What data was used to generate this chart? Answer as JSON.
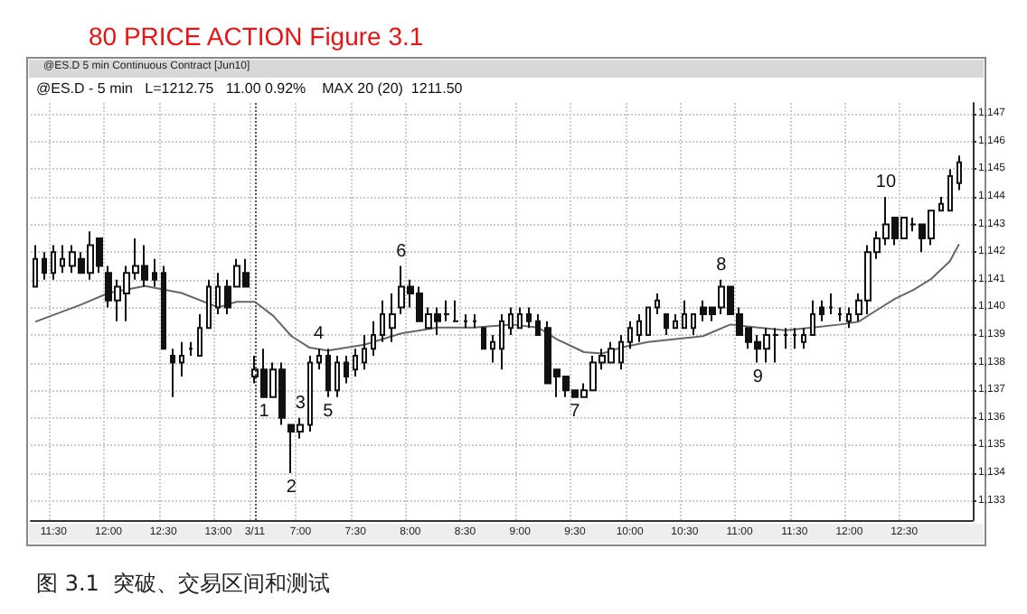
{
  "chart_data": {
    "type": "candlestick",
    "title": "80 PRICE ACTION Figure 3.1",
    "subtitle": "@ES.D - 5 min   L=1212.75   11.00 0.92%    MAX 20 (20)  1211.50",
    "annotations": [
      "@ES.D 5 min Continuous Contract [Jun10]",
      "图 3.1  突破、交易区间和测试"
    ],
    "categories": [
      null,
      null,
      "11:30",
      null,
      null,
      null,
      null,
      null,
      "12:00",
      null,
      null,
      null,
      null,
      null,
      "12:30",
      null,
      null,
      null,
      null,
      null,
      "13:00",
      null,
      null,
      null,
      "3/11",
      null,
      null,
      null,
      null,
      "7:00",
      null,
      null,
      null,
      null,
      null,
      "7:30",
      null,
      null,
      null,
      null,
      null,
      "8:00",
      null,
      null,
      null,
      null,
      null,
      "8:30",
      null,
      null,
      null,
      null,
      null,
      "9:00",
      null,
      null,
      null,
      null,
      null,
      "9:30",
      null,
      null,
      null,
      null,
      null,
      "10:00",
      null,
      null,
      null,
      null,
      null,
      "10:30",
      null,
      null,
      null,
      null,
      null,
      "11:00",
      null,
      null,
      null,
      null,
      null,
      "11:30",
      null,
      null,
      null,
      null,
      null,
      "12:00",
      null,
      null,
      null,
      null,
      null,
      "12:30",
      null,
      null,
      null,
      null,
      null,
      null
    ],
    "ylim": [
      1132.3,
      1147.4
    ],
    "yticks": [
      {
        "value": 1133,
        "label": "1,133"
      },
      {
        "value": 1134,
        "label": "1,134"
      },
      {
        "value": 1135,
        "label": "1,135"
      },
      {
        "value": 1136,
        "label": "1,136"
      },
      {
        "value": 1137,
        "label": "1,137"
      },
      {
        "value": 1138,
        "label": "1,138"
      },
      {
        "value": 1139,
        "label": "1,139"
      },
      {
        "value": 1140,
        "label": "1,140"
      },
      {
        "value": 1141,
        "label": "1,141"
      },
      {
        "value": 1142,
        "label": "1,142"
      },
      {
        "value": 1143,
        "label": "1,143"
      },
      {
        "value": 1144,
        "label": "1,144"
      },
      {
        "value": 1145,
        "label": "1,145"
      },
      {
        "value": 1146,
        "label": "1,146"
      },
      {
        "value": 1147,
        "label": "1,147"
      }
    ],
    "grid": true,
    "ref_lines": [
      {
        "axis": "x",
        "value": "3/11",
        "line_style": "dotted",
        "color": "#555555"
      }
    ],
    "series": [
      {
        "type": "line",
        "color": "#666666",
        "marker": "none",
        "values": [
          1139.48,
          null,
          null,
          null,
          null,
          1140.1,
          null,
          null,
          1140.52,
          null,
          null,
          null,
          1140.77,
          null,
          null,
          null,
          1140.52,
          null,
          null,
          null,
          1140,
          null,
          1140.2,
          null,
          1140.2,
          null,
          1139.7,
          null,
          1138.96,
          null,
          1138.54,
          null,
          1138.44,
          null,
          null,
          null,
          1138.65,
          null,
          null,
          null,
          1139.06,
          null,
          null,
          null,
          1139.27,
          null,
          null,
          null,
          1139.27,
          null,
          null,
          null,
          1139.38,
          null,
          null,
          1139.27,
          null,
          1138.85,
          null,
          null,
          1138.38,
          null,
          1138.33,
          null,
          1138.54,
          null,
          null,
          1138.75,
          null,
          null,
          1138.85,
          null,
          null,
          1138.96,
          null,
          null,
          1139.38,
          null,
          null,
          1139.27,
          null,
          null,
          1139.17,
          null,
          null,
          1139.27,
          null,
          null,
          1139.38,
          null,
          1139.48,
          null,
          1139.9,
          null,
          1140.31,
          null,
          1140.63,
          null,
          1141.04,
          null,
          1141.67,
          1142.29
        ]
      },
      {
        "type": "candlestick",
        "value_labels": [
          null,
          null,
          null,
          null,
          null,
          null,
          null,
          null,
          null,
          null,
          null,
          null,
          null,
          null,
          null,
          null,
          null,
          null,
          null,
          null,
          null,
          null,
          null,
          null,
          null,
          "1",
          null,
          null,
          "2",
          "3",
          null,
          "4",
          "5",
          null,
          null,
          null,
          null,
          null,
          null,
          null,
          "6",
          null,
          null,
          null,
          null,
          null,
          null,
          null,
          null,
          null,
          null,
          null,
          null,
          null,
          null,
          null,
          null,
          null,
          null,
          "7",
          null,
          null,
          null,
          null,
          null,
          null,
          null,
          null,
          null,
          null,
          null,
          null,
          null,
          null,
          null,
          "8",
          null,
          null,
          null,
          "9",
          null,
          null,
          null,
          null,
          null,
          null,
          null,
          null,
          null,
          null,
          null,
          null,
          null,
          "10",
          null,
          null,
          null,
          null,
          null,
          null,
          null,
          null
        ],
        "ohlc": [
          [
            1140.75,
            1142.25,
            1140.75,
            1141.75
          ],
          [
            1141.75,
            1142,
            1141,
            1141.25
          ],
          [
            1141.25,
            1142.25,
            1141,
            1142
          ],
          [
            1141.5,
            1142.25,
            1141.25,
            1141.75
          ],
          [
            1141.5,
            1142.25,
            1141.25,
            1142
          ],
          [
            1141.75,
            1142,
            1141.25,
            1141.25
          ],
          [
            1141.25,
            1142.75,
            1141,
            1142.25
          ],
          [
            1142.5,
            1142.5,
            1141.25,
            1141.5
          ],
          [
            1141.25,
            1141.5,
            1140,
            1140.25
          ],
          [
            1140.25,
            1141,
            1139.5,
            1140.75
          ],
          [
            1140.5,
            1141.5,
            1139.5,
            1141.25
          ],
          [
            1141.25,
            1142.5,
            1141,
            1141.5
          ],
          [
            1141.5,
            1142.25,
            1140.75,
            1141
          ],
          [
            1141.25,
            1141.75,
            1140.75,
            1141
          ],
          [
            1141.25,
            1141.5,
            1138.5,
            1138.5
          ],
          [
            1138.25,
            1138.5,
            1136.75,
            1138
          ],
          [
            1138,
            1138.75,
            1137.5,
            1138.25
          ],
          [
            1138.5,
            1138.75,
            1138.25,
            1138.5
          ],
          [
            1138.25,
            1139.75,
            1138.25,
            1139.25
          ],
          [
            1139.25,
            1141,
            1139.25,
            1140.75
          ],
          [
            1140,
            1141.25,
            1139.75,
            1140.75
          ],
          [
            1140.75,
            1141,
            1139.75,
            1140
          ],
          [
            1140.75,
            1141.75,
            1140.75,
            1141.5
          ],
          [
            1141.25,
            1141.75,
            1140.75,
            1140.75
          ],
          [
            1137.5,
            1138.25,
            1137.25,
            1137.75
          ],
          [
            1137.75,
            1138.5,
            1136.75,
            1136.75
          ],
          [
            1136.75,
            1138,
            1136.75,
            1137.75
          ],
          [
            1137.75,
            1138,
            1135.75,
            1136
          ],
          [
            1135.75,
            1135.75,
            1134,
            1135.5
          ],
          [
            1135.5,
            1136,
            1135.25,
            1135.75
          ],
          [
            1135.75,
            1138.25,
            1135.5,
            1138
          ],
          [
            1138,
            1138.5,
            1137.75,
            1138.25
          ],
          [
            1138.25,
            1138.5,
            1136.75,
            1137
          ],
          [
            1137,
            1138.25,
            1136.75,
            1138
          ],
          [
            1138,
            1138.25,
            1137.25,
            1137.5
          ],
          [
            1137.75,
            1138.5,
            1137.5,
            1138.25
          ],
          [
            1138,
            1139,
            1137.75,
            1138.5
          ],
          [
            1138.5,
            1139.5,
            1138.25,
            1139
          ],
          [
            1139,
            1140.25,
            1138.75,
            1139.75
          ],
          [
            1139.25,
            1140.5,
            1138.75,
            1139.75
          ],
          [
            1140,
            1141.5,
            1139.75,
            1140.75
          ],
          [
            1140.75,
            1141,
            1140,
            1140.5
          ],
          [
            1140.5,
            1140.75,
            1139.5,
            1139.5
          ],
          [
            1139.25,
            1140,
            1139.25,
            1139.75
          ],
          [
            1139.75,
            1140,
            1139,
            1139.5
          ],
          [
            1139.75,
            1140.25,
            1139.5,
            1139.75
          ],
          [
            1139.5,
            1140.25,
            1139.5,
            1139.5
          ],
          [
            1139.5,
            1139.75,
            1139.25,
            1139.5
          ],
          [
            1139.5,
            1139.75,
            1139.25,
            1139.5
          ],
          [
            1139.25,
            1139.25,
            1138.5,
            1138.5
          ],
          [
            1138.5,
            1139,
            1138,
            1138.75
          ],
          [
            1138.5,
            1139.75,
            1137.75,
            1139.5
          ],
          [
            1139.25,
            1140,
            1139,
            1139.75
          ],
          [
            1139.25,
            1140,
            1139.25,
            1139.75
          ],
          [
            1139.75,
            1140,
            1139.25,
            1139.5
          ],
          [
            1139.5,
            1139.75,
            1139,
            1139
          ],
          [
            1139.25,
            1139.5,
            1137.25,
            1137.25
          ],
          [
            1137.75,
            1137.75,
            1136.75,
            1137.5
          ],
          [
            1137.5,
            1137.5,
            1136.75,
            1137
          ],
          [
            1137,
            1137,
            1136.75,
            1136.75
          ],
          [
            1136.75,
            1137.25,
            1136.75,
            1137
          ],
          [
            1137,
            1138.25,
            1137,
            1138
          ],
          [
            1138,
            1138.5,
            1137.75,
            1138.25
          ],
          [
            1138,
            1138.75,
            1138,
            1138.5
          ],
          [
            1138,
            1139,
            1137.75,
            1138.75
          ],
          [
            1138.75,
            1139.5,
            1138.5,
            1139.25
          ],
          [
            1139,
            1139.75,
            1138.75,
            1139.5
          ],
          [
            1139,
            1140,
            1139,
            1140
          ],
          [
            1140,
            1140.5,
            1139.75,
            1140.25
          ],
          [
            1139.75,
            1139.75,
            1139,
            1139.25
          ],
          [
            1139.25,
            1139.75,
            1139.25,
            1139.5
          ],
          [
            1139.25,
            1140.25,
            1139.25,
            1139.75
          ],
          [
            1139.25,
            1139.75,
            1139,
            1139.75
          ],
          [
            1140,
            1140.25,
            1139.5,
            1139.75
          ],
          [
            1140,
            1140,
            1139.5,
            1139.75
          ],
          [
            1140,
            1141,
            1139.75,
            1140.75
          ],
          [
            1140.75,
            1140.75,
            1139.75,
            1139.75
          ],
          [
            1139.75,
            1140,
            1139,
            1139
          ],
          [
            1139.25,
            1139.25,
            1138.5,
            1138.75
          ],
          [
            1138.75,
            1139,
            1138,
            1138.5
          ],
          [
            1138.5,
            1139.25,
            1138,
            1139
          ],
          [
            1139,
            1139.25,
            1138,
            1139
          ],
          [
            1139,
            1139.25,
            1138.5,
            1139
          ],
          [
            1139,
            1139.25,
            1138.5,
            1139
          ],
          [
            1138.75,
            1139.25,
            1138.5,
            1139
          ],
          [
            1139,
            1140.25,
            1139,
            1139.75
          ],
          [
            1140,
            1140.25,
            1139.5,
            1139.75
          ],
          [
            1140,
            1140.5,
            1139.75,
            1140
          ],
          [
            1139.75,
            1140,
            1139.5,
            1139.75
          ],
          [
            1139.5,
            1140,
            1139.25,
            1139.75
          ],
          [
            1139.75,
            1140.5,
            1139.5,
            1140.25
          ],
          [
            1140.25,
            1142.25,
            1139.75,
            1142
          ],
          [
            1142,
            1142.75,
            1141.75,
            1142.5
          ],
          [
            1142.5,
            1144,
            1142.25,
            1143
          ],
          [
            1143.25,
            1143.25,
            1142.25,
            1142.5
          ],
          [
            1142.5,
            1143.25,
            1142.5,
            1143.25
          ],
          [
            1143,
            1143.25,
            1142.75,
            1143
          ],
          [
            1143,
            1143,
            1142,
            1142.5
          ],
          [
            1142.5,
            1143.5,
            1142.25,
            1143.5
          ],
          [
            1143.5,
            1144,
            1143.5,
            1143.75
          ],
          [
            1143.5,
            1145,
            1143.5,
            1144.75
          ],
          [
            1144.5,
            1145.5,
            1144.25,
            1145.25
          ]
        ]
      }
    ]
  }
}
